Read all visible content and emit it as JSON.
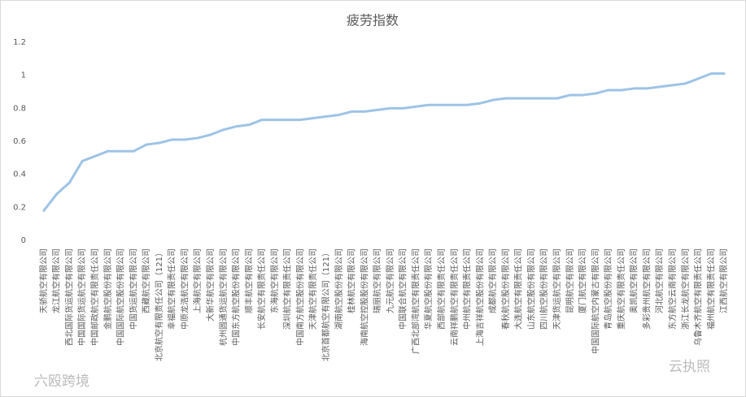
{
  "chart_data": {
    "type": "line",
    "title": "疲劳指数",
    "categories": [
      "天骄航空有限公司",
      "龙江航空有限公司",
      "西北国际货运航空有限公司",
      "中国国际货运航空有限公司",
      "中国邮政航空有限责任公司",
      "金鹏航空股份有限公司",
      "中国国际航空股份有限公司",
      "中国货运航空有限公司",
      "西藏航空有限公司",
      "北京航空有限责任公司（121）",
      "幸福航空有限责任公司",
      "中原龙浩航空有限公司",
      "上海航空有限公司",
      "大新华航空有限公司",
      "杭州圆通货运航空有限公司",
      "中国东方航空股份有限公司",
      "顺丰航空有限公司",
      "长安航空有限责任公司",
      "东海航空有限公司",
      "深圳航空有限责任公司",
      "中国南方航空股份有限公司",
      "天津航空有限责任公司",
      "北京首都航空有限公司（121）",
      "湖南航空股份有限公司",
      "桂林航空有限公司",
      "海南航空控股股份有限公司",
      "瑞丽航空有限公司",
      "九元航空有限公司",
      "中国联合航空有限公司",
      "广西北部湾航空有限责任公司",
      "华夏航空股份有限公司",
      "西部航空有限责任公司",
      "云南祥鹏航空有限责任公司",
      "中州航空有限责任公司",
      "上海吉祥航空股份有限公司",
      "成都航空有限公司",
      "春秋航空股份有限公司",
      "大连航空有限责任公司",
      "山东航空股份有限公司",
      "四川航空股份有限公司",
      "天津货运航空有限公司",
      "昆明航空有限公司",
      "厦门航空有限公司",
      "中国国际航空内蒙古有限公司",
      "青岛航空股份有限公司",
      "重庆航空有限责任公司",
      "奥凯航空有限公司",
      "多彩贵州航空有限公司",
      "河北航空有限公司",
      "东方航空云南有限公司",
      "浙江长龙航空有限公司",
      "乌鲁木齐航空有限责任公司",
      "福州航空有限责任公司",
      "江西航空有限公司"
    ],
    "values": [
      0.18,
      0.28,
      0.35,
      0.48,
      0.51,
      0.54,
      0.54,
      0.54,
      0.58,
      0.59,
      0.61,
      0.61,
      0.62,
      0.64,
      0.67,
      0.69,
      0.7,
      0.73,
      0.73,
      0.73,
      0.73,
      0.74,
      0.75,
      0.76,
      0.78,
      0.78,
      0.79,
      0.8,
      0.8,
      0.81,
      0.82,
      0.82,
      0.82,
      0.82,
      0.83,
      0.85,
      0.86,
      0.86,
      0.86,
      0.86,
      0.86,
      0.88,
      0.88,
      0.89,
      0.91,
      0.91,
      0.92,
      0.92,
      0.93,
      0.94,
      0.95,
      0.98,
      1.01,
      1.01
    ],
    "color": "#9dc3e6",
    "ylim": [
      0,
      1.2
    ],
    "yticks": [
      0,
      0.2,
      0.4,
      0.6,
      0.8,
      1,
      1.2
    ],
    "grid": false
  },
  "watermarks": [
    "六殴跨境",
    "云执照"
  ]
}
